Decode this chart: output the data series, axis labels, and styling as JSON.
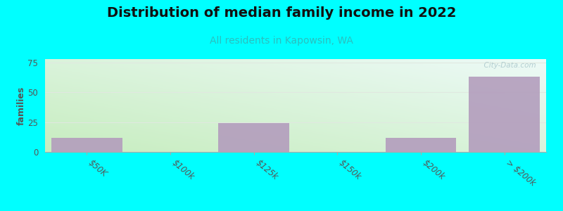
{
  "title": "Distribution of median family income in 2022",
  "subtitle": "All residents in Kapowsin, WA",
  "ylabel": "families",
  "background_color": "#00FFFF",
  "bar_color": "#b39dbd",
  "tick_labels": [
    "$50K",
    "$100k",
    "$125k",
    "$150k",
    "$200k",
    "> $200k"
  ],
  "bar_positions": [
    0,
    2,
    4,
    5
  ],
  "bar_values": [
    12,
    24,
    12,
    63
  ],
  "all_positions": [
    0,
    1,
    2,
    3,
    4,
    5
  ],
  "ylim": [
    0,
    78
  ],
  "yticks": [
    0,
    25,
    50,
    75
  ],
  "bar_width": 0.85,
  "watermark": "  City-Data.com",
  "title_fontsize": 14,
  "subtitle_fontsize": 10,
  "ylabel_fontsize": 9,
  "subtitle_color": "#2bbfbf",
  "title_color": "#111111",
  "tick_color": "#555555",
  "ylabel_color": "#555555",
  "grid_color": "#e0e8e0",
  "spine_color": "#aaaaaa"
}
